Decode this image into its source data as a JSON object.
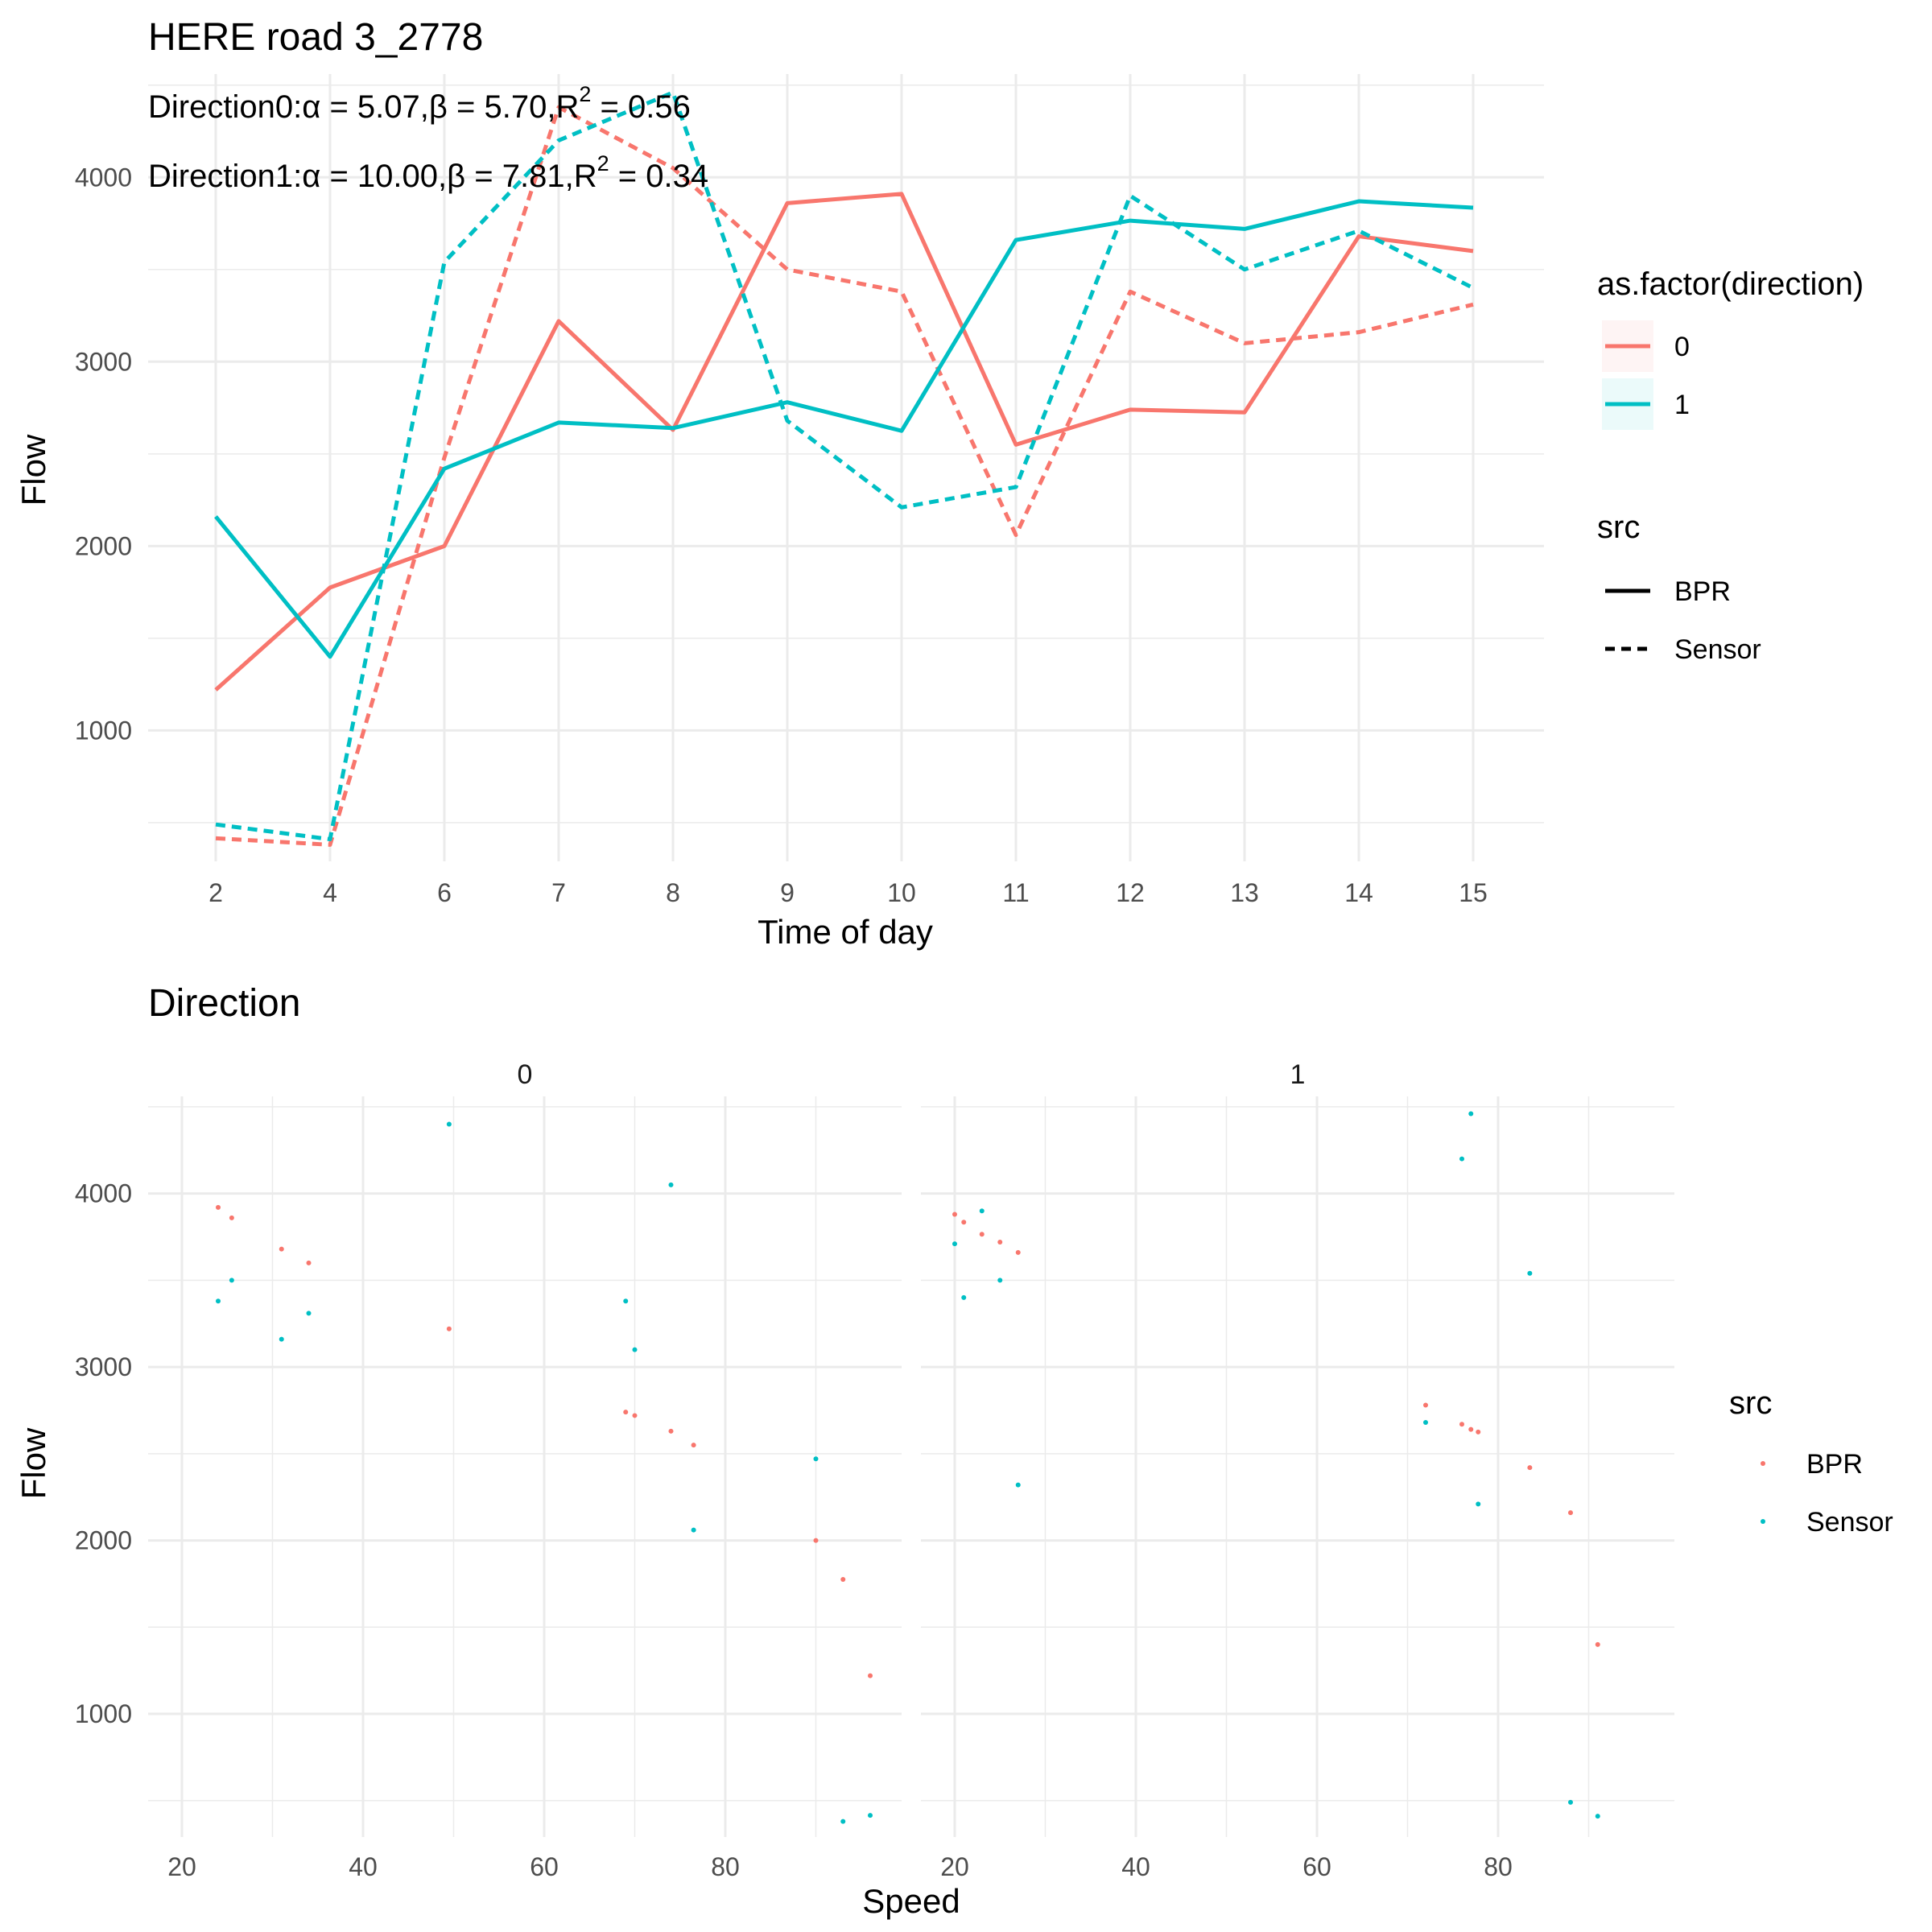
{
  "colors": {
    "dir0": "#F8766D",
    "dir1": "#00BFC4"
  },
  "chart_data": [
    {
      "type": "line",
      "title": "HERE road 3_2778",
      "annotations": [
        {
          "label": "Direction0:",
          "alpha": "α = 5.07",
          "beta": "β = 5.70",
          "r2label": "R",
          "r2exp": "2",
          "r2value": " = 0.56"
        },
        {
          "label": "Direction1:",
          "alpha": "α = 10.00",
          "beta": "β = 7.81",
          "r2label": "R",
          "r2exp": "2",
          "r2value": " = 0.34"
        }
      ],
      "xlabel": "Time of day",
      "ylabel": "Flow",
      "categories": [
        "2",
        "4",
        "6",
        "7",
        "8",
        "9",
        "10",
        "11",
        "12",
        "13",
        "14",
        "15"
      ],
      "ylim": [
        290,
        4560
      ],
      "yticks": [
        1000,
        2000,
        3000,
        4000
      ],
      "grid": true,
      "series": [
        {
          "name": "0",
          "src": "BPR",
          "color": "#F8766D",
          "dashed": false,
          "values": [
            1220,
            1775,
            2000,
            3220,
            2630,
            3860,
            3910,
            2550,
            2740,
            2725,
            3680,
            3600
          ]
        },
        {
          "name": "0",
          "src": "Sensor",
          "color": "#F8766D",
          "dashed": true,
          "values": [
            415,
            380,
            2480,
            4380,
            4050,
            3500,
            3380,
            2060,
            3380,
            3100,
            3160,
            3310
          ]
        },
        {
          "name": "1",
          "src": "BPR",
          "color": "#00BFC4",
          "dashed": false,
          "values": [
            2160,
            1400,
            2420,
            2670,
            2640,
            2780,
            2625,
            3660,
            3765,
            3720,
            3870,
            3835
          ]
        },
        {
          "name": "1",
          "src": "Sensor",
          "color": "#00BFC4",
          "dashed": true,
          "values": [
            490,
            410,
            3540,
            4200,
            4460,
            2680,
            2210,
            2320,
            3900,
            3500,
            3710,
            3400
          ]
        }
      ],
      "legend": {
        "placement": "right",
        "direction_title": "as.factor(direction)",
        "direction_items": [
          "0",
          "1"
        ],
        "src_title": "src",
        "src_items": [
          "BPR",
          "Sensor"
        ]
      }
    },
    {
      "type": "scatter",
      "title": "Direction",
      "xlabel": "Speed",
      "ylabel": "Flow",
      "xlim": [
        16,
        94.5
      ],
      "ylim": [
        290,
        4560
      ],
      "xticks": [
        20,
        40,
        60,
        80
      ],
      "yticks": [
        1000,
        2000,
        3000,
        4000
      ],
      "grid": true,
      "legend": {
        "placement": "right",
        "title": "src",
        "items": [
          "BPR",
          "Sensor"
        ]
      },
      "panels": [
        {
          "label": "0",
          "BPR": [
            [
              24.0,
              3920
            ],
            [
              25.5,
              3860
            ],
            [
              31.0,
              3680
            ],
            [
              34.0,
              3600
            ],
            [
              49.5,
              3220
            ],
            [
              69.0,
              2740
            ],
            [
              70.0,
              2720
            ],
            [
              74.0,
              2630
            ],
            [
              76.5,
              2550
            ],
            [
              90.0,
              2000
            ],
            [
              93.0,
              1775
            ],
            [
              96.0,
              1220
            ]
          ],
          "Sensor": [
            [
              24.0,
              3380
            ],
            [
              25.5,
              3500
            ],
            [
              31.0,
              3160
            ],
            [
              34.0,
              3310
            ],
            [
              49.5,
              4400
            ],
            [
              69.0,
              3380
            ],
            [
              70.0,
              3100
            ],
            [
              74.0,
              4050
            ],
            [
              76.5,
              2060
            ],
            [
              90.0,
              2470
            ],
            [
              93.0,
              380
            ],
            [
              96.0,
              415
            ]
          ]
        },
        {
          "label": "1",
          "BPR": [
            [
              20.0,
              3880
            ],
            [
              21.0,
              3835
            ],
            [
              23.0,
              3765
            ],
            [
              25.0,
              3720
            ],
            [
              27.0,
              3660
            ],
            [
              72.0,
              2780
            ],
            [
              76.0,
              2670
            ],
            [
              77.0,
              2640
            ],
            [
              77.8,
              2625
            ],
            [
              83.5,
              2420
            ],
            [
              88.0,
              2160
            ],
            [
              91.0,
              1400
            ]
          ],
          "Sensor": [
            [
              20.0,
              3710
            ],
            [
              21.0,
              3400
            ],
            [
              23.0,
              3900
            ],
            [
              25.0,
              3500
            ],
            [
              27.0,
              2320
            ],
            [
              72.0,
              2680
            ],
            [
              76.0,
              4200
            ],
            [
              77.0,
              4460
            ],
            [
              77.8,
              2210
            ],
            [
              83.5,
              3540
            ],
            [
              88.0,
              490
            ],
            [
              91.0,
              410
            ]
          ]
        }
      ]
    }
  ]
}
